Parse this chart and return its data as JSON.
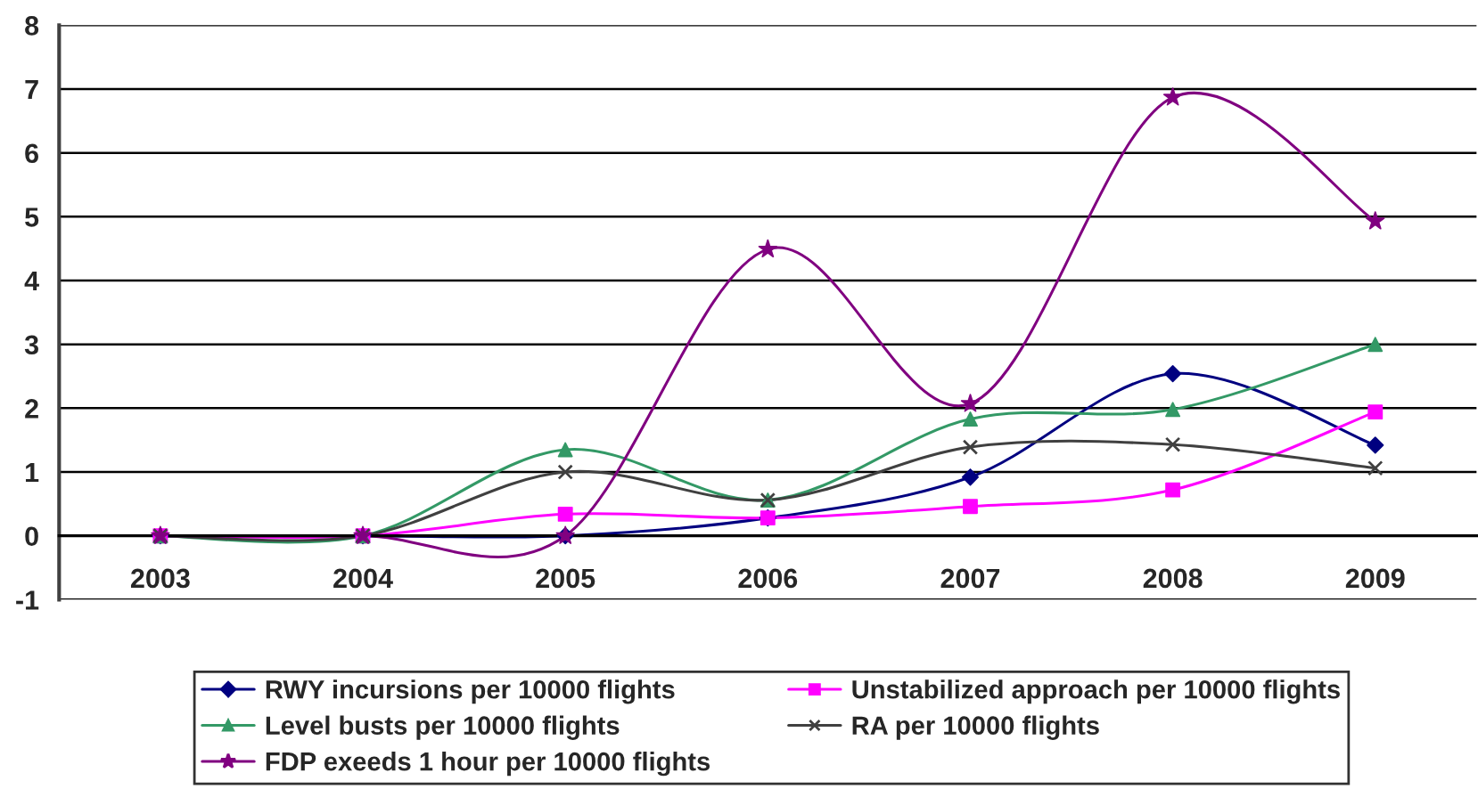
{
  "chart_data": {
    "type": "line",
    "categories": [
      "2003",
      "2004",
      "2005",
      "2006",
      "2007",
      "2008",
      "2009"
    ],
    "series": [
      {
        "name": "RWY incursions per 10000 flights",
        "color": "#000080",
        "marker": "diamond",
        "values": [
          0,
          0,
          0,
          0.28,
          0.92,
          2.54,
          1.42
        ]
      },
      {
        "name": "Unstabilized approach per 10000 flights",
        "color": "#ff00ff",
        "marker": "square",
        "values": [
          0,
          0,
          0.34,
          0.28,
          0.46,
          0.72,
          1.94
        ]
      },
      {
        "name": "Level busts per 10000 flights",
        "color": "#339966",
        "marker": "triangle",
        "values": [
          0,
          0,
          1.35,
          0.56,
          1.83,
          1.98,
          3.0
        ]
      },
      {
        "name": "RA per 10000 flights",
        "color": "#404040",
        "marker": "cross",
        "values": [
          0,
          0,
          1.0,
          0.56,
          1.39,
          1.43,
          1.06
        ]
      },
      {
        "name": "FDP exeeds 1 hour per 10000 flights",
        "color": "#800080",
        "marker": "star",
        "values": [
          0,
          0,
          0,
          4.49,
          2.07,
          6.87,
          4.93
        ]
      }
    ],
    "ylim": [
      -1,
      8
    ],
    "yticks": [
      -1,
      0,
      1,
      2,
      3,
      4,
      5,
      6,
      7,
      8
    ],
    "grid": "y",
    "legend": "bottom"
  }
}
